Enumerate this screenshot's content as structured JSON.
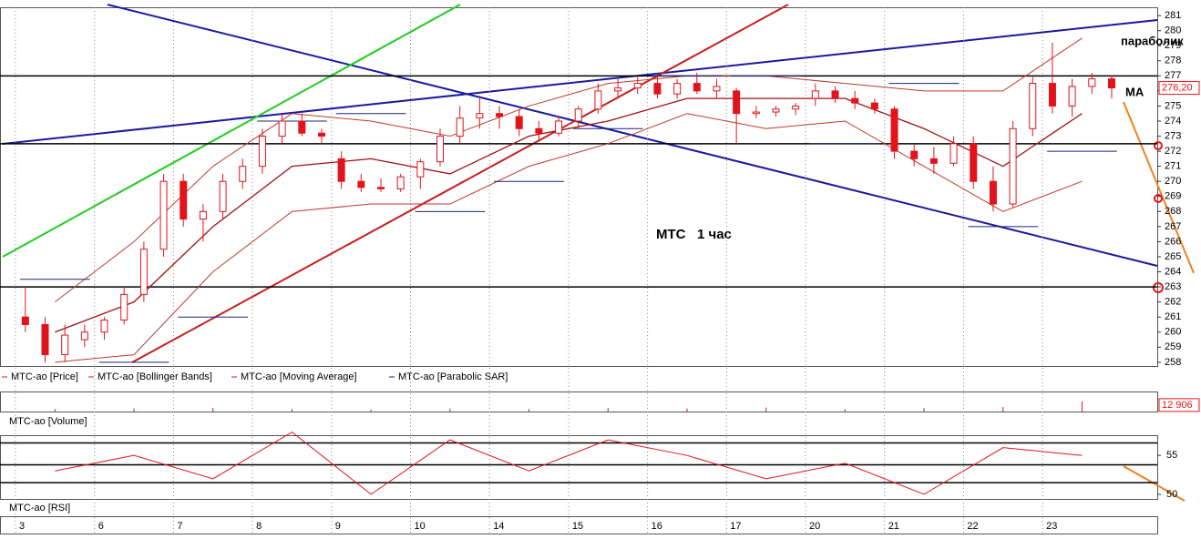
{
  "chart_data": {
    "type": "candlestick",
    "title": "МТС   1 час",
    "annotations": [
      "параболик",
      "МА"
    ],
    "legend": [
      "MTC-ao [Price]",
      "MTC-ao [Bollinger Bands]",
      "MTC-ao [Moving Average]",
      "MTC-ao [Parabolic SAR]"
    ],
    "colors": {
      "candle": "#e3131b",
      "bands": "#c0392b",
      "ma": "#a01010",
      "sar": "#1a237e"
    },
    "categories": [
      "3",
      "6",
      "7",
      "8",
      "9",
      "10",
      "14",
      "15",
      "16",
      "17",
      "20",
      "21",
      "22",
      "23"
    ],
    "candles": [
      [
        [
          261,
          263,
          260,
          260.5
        ],
        [
          260.5,
          261,
          258,
          258.5
        ],
        [
          258.5,
          260.5,
          258,
          259.8
        ],
        [
          259.5,
          260.5,
          259,
          260
        ]
      ],
      [
        [
          260,
          261,
          259.5,
          260.8
        ],
        [
          260.8,
          263,
          260.5,
          262.5
        ],
        [
          262.5,
          266,
          262,
          265.5
        ],
        [
          265.5,
          270.5,
          265,
          270
        ]
      ],
      [
        [
          270,
          270.5,
          267,
          267.5
        ],
        [
          267.5,
          268.5,
          266,
          268
        ],
        [
          268,
          270.5,
          267.5,
          270
        ],
        [
          270,
          271.5,
          269.5,
          271
        ]
      ],
      [
        [
          271,
          273.5,
          270.5,
          273
        ],
        [
          273,
          274.5,
          272.5,
          274
        ],
        [
          274,
          274.5,
          273,
          273.2
        ],
        [
          273.2,
          273.5,
          272.5,
          273
        ]
      ],
      [
        [
          271.5,
          272,
          269.5,
          270
        ],
        [
          270,
          270.5,
          269.3,
          269.6
        ],
        [
          269.6,
          270.2,
          269.3,
          269.5
        ],
        [
          269.5,
          270.5,
          269.3,
          270.3
        ]
      ],
      [
        [
          270.3,
          271.5,
          269.5,
          271.3
        ],
        [
          271.3,
          273.5,
          271,
          273
        ],
        [
          273,
          275,
          272.5,
          274.2
        ],
        [
          274.2,
          275.5,
          273.5,
          274.5
        ]
      ],
      [
        [
          274.5,
          275,
          273.5,
          274.3
        ],
        [
          274.3,
          274.8,
          273,
          273.5
        ],
        [
          273.5,
          274,
          272.7,
          273.2
        ],
        [
          273.2,
          274.3,
          273,
          274
        ]
      ],
      [
        [
          274,
          275,
          273.5,
          274.8
        ],
        [
          274.8,
          276.5,
          274.5,
          276
        ],
        [
          276,
          276.8,
          275.5,
          276.2
        ],
        [
          276.2,
          277,
          275.8,
          276.5
        ]
      ],
      [
        [
          276.5,
          277,
          275.5,
          275.8
        ],
        [
          275.8,
          276.8,
          275.5,
          276.5
        ],
        [
          276.5,
          277.2,
          275.8,
          276
        ],
        [
          276,
          276.8,
          275.5,
          276.3
        ]
      ],
      [
        [
          276,
          276.2,
          272.5,
          274.5
        ],
        [
          274.5,
          275,
          274.2,
          274.6
        ],
        [
          274.6,
          275,
          274.3,
          274.8
        ],
        [
          274.8,
          275.2,
          274.4,
          275
        ]
      ],
      [
        [
          275.5,
          276.5,
          275,
          276
        ],
        [
          276,
          276.3,
          275.2,
          275.5
        ],
        [
          275.5,
          276,
          274.8,
          275.2
        ],
        [
          275.2,
          275.5,
          274.5,
          274.8
        ]
      ],
      [
        [
          274.8,
          275,
          271.5,
          272
        ],
        [
          272,
          272.5,
          271,
          271.5
        ],
        [
          271.5,
          272.3,
          270.5,
          271.2
        ],
        [
          271.2,
          273,
          271,
          272.5
        ]
      ],
      [
        [
          272.5,
          273,
          269.5,
          270
        ],
        [
          270,
          271,
          268,
          268.5
        ],
        [
          268.5,
          274,
          268.3,
          273.5
        ],
        [
          273.5,
          277,
          273,
          276.5
        ]
      ],
      [
        [
          276.5,
          279.2,
          274.5,
          275
        ],
        [
          275,
          276.8,
          274.3,
          276.3
        ],
        [
          276.3,
          277.2,
          275.8,
          276.8
        ],
        [
          276.8,
          277,
          275.5,
          276.2
        ]
      ]
    ],
    "ma": [
      260,
      262,
      267,
      271,
      271.5,
      270.5,
      273,
      274,
      275.5,
      275.5,
      275.5,
      273.5,
      271,
      274.5
    ],
    "bb_upper": [
      262,
      266,
      271,
      274.5,
      274,
      273,
      275,
      276.5,
      277,
      277,
      276.5,
      276,
      276,
      279.5
    ],
    "bb_lower": [
      258,
      258.5,
      264,
      268,
      268.5,
      268.5,
      271,
      272.5,
      274.5,
      273.5,
      274,
      271,
      268,
      270
    ],
    "sar": [
      263.5,
      258,
      261,
      274,
      274.5,
      268,
      270,
      273.5,
      277,
      277,
      272.5,
      276.5,
      267,
      272
    ],
    "levels": [
      277,
      272.5,
      263
    ],
    "last_price": {
      "value": 276.2,
      "label": "276,20"
    },
    "ylim": [
      257.75,
      281.55
    ],
    "yticks": [
      258,
      259,
      260,
      261,
      262,
      263,
      264,
      265,
      266,
      267,
      268,
      269,
      270,
      271,
      272,
      273,
      274,
      275,
      276,
      277,
      278,
      279,
      280,
      281
    ],
    "volume": {
      "label": "MTC-ao [Volume]",
      "values": [
        5000,
        6000,
        7000,
        5000,
        4000,
        6000,
        5000,
        7000,
        6000,
        8000,
        5000,
        7000,
        9000,
        20000
      ],
      "ylim": [
        0,
        40000
      ],
      "last": {
        "value": 12906,
        "label": "12 906"
      }
    },
    "rsi": {
      "label": "MTC-ao [RSI]",
      "values": [
        53,
        55,
        52,
        58,
        50,
        57,
        53,
        57,
        55,
        52,
        54,
        50,
        56,
        55
      ],
      "ylim": [
        49.4,
        57.6
      ],
      "yticks": [
        50,
        55
      ],
      "levels": [
        56.6,
        53.8,
        51.5
      ]
    }
  }
}
